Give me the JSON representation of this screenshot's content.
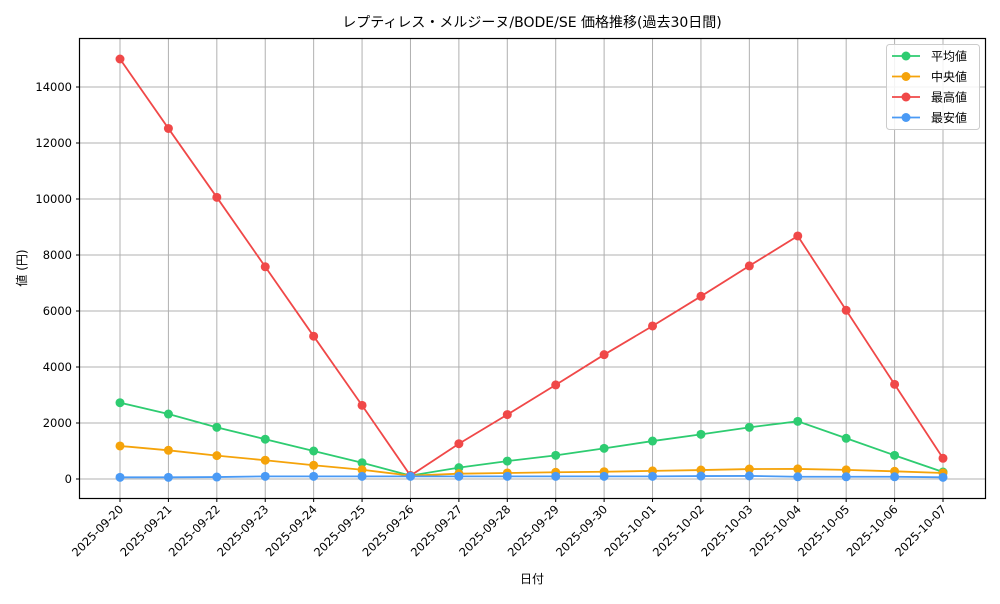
{
  "chart_data": {
    "type": "line",
    "title": "レプティレス・メルジーヌ/BODE/SE 価格推移(過去30日間)",
    "xlabel": "日付",
    "ylabel": "値 (円)",
    "ylim": [
      -700,
      15700
    ],
    "yticks": [
      0,
      2000,
      4000,
      6000,
      8000,
      10000,
      12000,
      14000
    ],
    "grid": true,
    "legend_position": "upper right",
    "categories": [
      "2025-09-20",
      "2025-09-21",
      "2025-09-22",
      "2025-09-23",
      "2025-09-24",
      "2025-09-25",
      "2025-09-26",
      "2025-09-27",
      "2025-09-28",
      "2025-09-29",
      "2025-09-30",
      "2025-10-01",
      "2025-10-02",
      "2025-10-03",
      "2025-10-04",
      "2025-10-05",
      "2025-10-06",
      "2025-10-07"
    ],
    "series": [
      {
        "name": "平均値",
        "color": "#2ecc71",
        "values": [
          2725,
          2320,
          1845,
          1420,
          1000,
          580,
          120,
          405,
          640,
          845,
          1095,
          1355,
          1595,
          1845,
          2060,
          1455,
          845,
          250
        ]
      },
      {
        "name": "中央値",
        "color": "#f5a30a",
        "values": [
          1180,
          1025,
          835,
          670,
          490,
          330,
          120,
          190,
          215,
          240,
          260,
          290,
          320,
          355,
          360,
          325,
          275,
          215
        ]
      },
      {
        "name": "最高値",
        "color": "#f04848",
        "values": [
          15000,
          12520,
          10060,
          7580,
          5100,
          2630,
          120,
          1260,
          2300,
          3360,
          4440,
          5465,
          6525,
          7610,
          8680,
          6025,
          3380,
          740
        ]
      },
      {
        "name": "最安値",
        "color": "#4a9af5",
        "values": [
          60,
          60,
          70,
          95,
          95,
          95,
          95,
          95,
          95,
          95,
          95,
          95,
          105,
          110,
          80,
          80,
          80,
          60
        ]
      }
    ]
  }
}
